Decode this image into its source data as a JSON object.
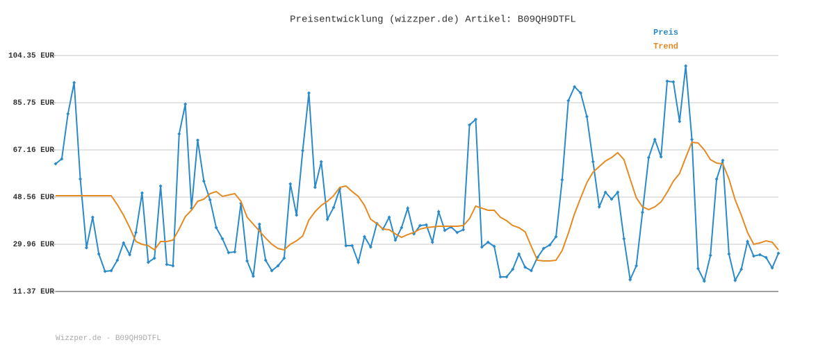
{
  "chart_data": {
    "type": "line",
    "title": "Preisentwicklung (wizzper.de) Artikel: B09QH9DTFL",
    "footer": "Wizzper.de - B09QH9DTFL",
    "ylim": [
      11.37,
      104.35
    ],
    "yticks": [
      {
        "value": 11.37,
        "label": "11.37 EUR"
      },
      {
        "value": 29.96,
        "label": "29.96 EUR"
      },
      {
        "value": 48.56,
        "label": "48.56 EUR"
      },
      {
        "value": 67.16,
        "label": "67.16 EUR"
      },
      {
        "value": 85.75,
        "label": "85.75 EUR"
      },
      {
        "value": 104.35,
        "label": "104.35 EUR"
      }
    ],
    "grid": true,
    "legend": "top-right",
    "series": [
      {
        "name": "Preis",
        "color": "#2a8ac8",
        "markers": true,
        "values": [
          61.69,
          63.6,
          81.38,
          93.68,
          55.67,
          28.6,
          40.63,
          26.14,
          19.3,
          19.57,
          23.68,
          30.51,
          25.86,
          34.62,
          50.2,
          22.86,
          24.5,
          52.94,
          22.04,
          21.49,
          73.45,
          85.21,
          44.19,
          70.99,
          54.85,
          47.47,
          36.53,
          32.15,
          26.68,
          26.96,
          46.1,
          23.4,
          17.39,
          37.9,
          23.68,
          19.57,
          21.49,
          24.5,
          53.76,
          41.45,
          66.88,
          89.58,
          52.39,
          62.51,
          39.81,
          44.46,
          51.84,
          29.42,
          29.42,
          22.86,
          32.97,
          28.87,
          38.17,
          35.98,
          40.63,
          31.61,
          36.53,
          44.19,
          34.07,
          37.35,
          37.62,
          30.79,
          42.82,
          35.44,
          36.8,
          34.62,
          35.71,
          77.0,
          79.19,
          28.87,
          30.79,
          29.15,
          17.11,
          17.11,
          20.12,
          26.14,
          20.94,
          19.57,
          24.77,
          28.32,
          29.69,
          32.97,
          55.4,
          86.57,
          92.04,
          89.58,
          80.28,
          62.51,
          44.73,
          50.48,
          47.74,
          50.48,
          32.15,
          16.02,
          21.49,
          42.55,
          64.15,
          71.26,
          64.42,
          94.23,
          93.96,
          78.37,
          100.25,
          71.26,
          20.39,
          15.47,
          25.59,
          55.67,
          63.06,
          26.14,
          15.75,
          20.12,
          31.06,
          25.32,
          25.86,
          24.77,
          20.67,
          26.41
        ]
      },
      {
        "name": "Trend",
        "color": "#e38a22",
        "markers": false,
        "values": [
          49.11,
          49.11,
          49.11,
          49.11,
          49.11,
          49.11,
          49.11,
          49.11,
          49.11,
          49.11,
          45.55,
          41.45,
          36.53,
          31.06,
          29.97,
          29.42,
          27.78,
          31.06,
          31.06,
          31.61,
          35.98,
          40.9,
          43.37,
          46.92,
          47.74,
          49.93,
          50.75,
          48.84,
          49.38,
          49.93,
          46.92,
          40.63,
          37.9,
          35.16,
          32.42,
          29.97,
          28.32,
          27.78,
          29.97,
          31.33,
          33.25,
          39.54,
          42.82,
          45.28,
          46.92,
          49.11,
          52.39,
          52.94,
          50.75,
          48.84,
          45.28,
          39.81,
          38.17,
          35.98,
          35.71,
          34.07,
          32.7,
          33.79,
          34.62,
          35.98,
          36.53,
          36.8,
          37.08,
          37.08,
          37.08,
          37.08,
          37.35,
          40.08,
          45.01,
          44.19,
          43.37,
          43.37,
          40.63,
          39.26,
          37.35,
          36.53,
          34.89,
          29.15,
          23.68,
          23.4,
          23.4,
          23.68,
          27.51,
          34.34,
          42.0,
          48.29,
          54.3,
          58.41,
          60.59,
          62.78,
          64.15,
          66.06,
          63.33,
          55.67,
          48.29,
          44.73,
          43.64,
          44.73,
          46.65,
          50.48,
          54.85,
          57.86,
          64.15,
          70.17,
          69.89,
          67.16,
          63.33,
          61.96,
          61.69,
          55.67,
          47.47,
          41.45,
          34.62,
          29.97,
          30.51,
          31.33,
          30.79,
          27.78
        ]
      }
    ]
  }
}
